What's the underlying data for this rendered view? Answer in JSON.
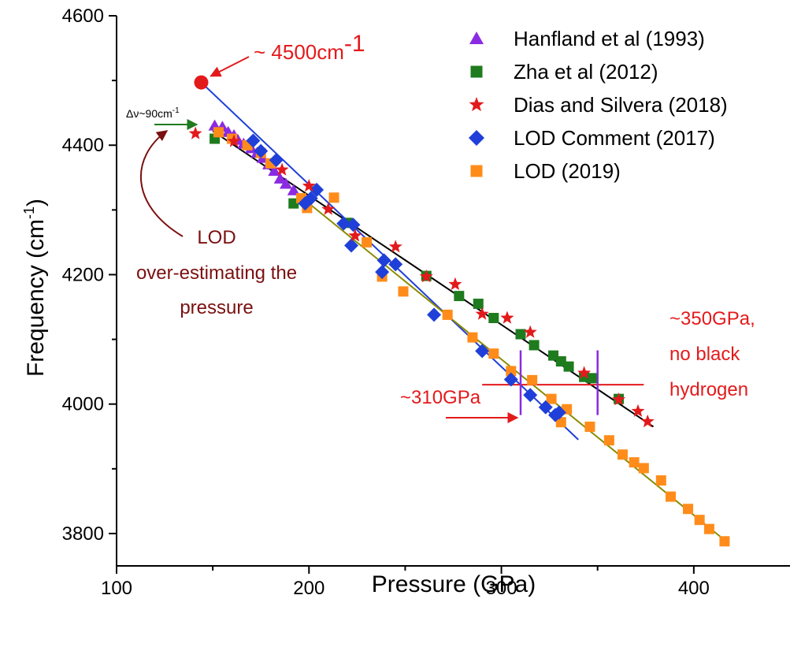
{
  "chart_data": {
    "type": "scatter",
    "xlabel": "Pressure (GPa)",
    "ylabel_main": "Frequency (cm",
    "ylabel_sup": "-1",
    "ylabel_end": ")",
    "xlim": [
      100,
      450
    ],
    "ylim": [
      3750,
      4600
    ],
    "x_ticks": [
      100,
      200,
      300,
      400
    ],
    "y_ticks": [
      3800,
      4000,
      4200,
      4400,
      4600
    ],
    "grid": false,
    "legend_position": "top-right",
    "series": [
      {
        "name": "Hanfland et al (1993)",
        "marker": "triangle",
        "color": "#8a2be2",
        "points": [
          [
            151,
            4430
          ],
          [
            155,
            4428
          ],
          [
            158,
            4420
          ],
          [
            161,
            4415
          ],
          [
            163,
            4408
          ],
          [
            166,
            4402
          ],
          [
            170,
            4395
          ],
          [
            173,
            4388
          ],
          [
            176,
            4380
          ],
          [
            179,
            4370
          ],
          [
            182,
            4360
          ],
          [
            185,
            4348
          ],
          [
            188,
            4340
          ],
          [
            192,
            4330
          ]
        ]
      },
      {
        "name": "Zha et al (2012)",
        "marker": "square",
        "color": "#1e7b1e",
        "points": [
          [
            151,
            4410
          ],
          [
            192,
            4310
          ],
          [
            220,
            4280
          ],
          [
            261,
            4198
          ],
          [
            278,
            4167
          ],
          [
            288,
            4155
          ],
          [
            296,
            4133
          ],
          [
            310,
            4108
          ],
          [
            317,
            4091
          ],
          [
            327,
            4075
          ],
          [
            331,
            4066
          ],
          [
            335,
            4058
          ],
          [
            343,
            4042
          ],
          [
            347,
            4040
          ],
          [
            361,
            4008
          ]
        ]
      },
      {
        "name": "Dias and Silvera (2018)",
        "marker": "star",
        "color": "#e31a1c",
        "points": [
          [
            141,
            4418
          ],
          [
            161,
            4406
          ],
          [
            186,
            4362
          ],
          [
            200,
            4337
          ],
          [
            210,
            4301
          ],
          [
            224,
            4260
          ],
          [
            245,
            4243
          ],
          [
            261,
            4197
          ],
          [
            276,
            4185
          ],
          [
            290,
            4139
          ],
          [
            303,
            4133
          ],
          [
            315,
            4111
          ],
          [
            343,
            4048
          ],
          [
            361,
            4007
          ],
          [
            371,
            3989
          ],
          [
            376,
            3973
          ]
        ]
      },
      {
        "name": "LOD Comment (2017)",
        "marker": "diamond",
        "color": "#1f3fd8",
        "points": [
          [
            171,
            4407
          ],
          [
            175,
            4391
          ],
          [
            183,
            4377
          ],
          [
            198,
            4310
          ],
          [
            201,
            4318
          ],
          [
            204,
            4331
          ],
          [
            218,
            4279
          ],
          [
            223,
            4277
          ],
          [
            222,
            4245
          ],
          [
            238,
            4204
          ],
          [
            239,
            4222
          ],
          [
            245,
            4216
          ],
          [
            265,
            4138
          ],
          [
            290,
            4082
          ],
          [
            305,
            4038
          ],
          [
            315,
            4014
          ],
          [
            323,
            3995
          ],
          [
            328,
            3983
          ],
          [
            330,
            3987
          ]
        ]
      },
      {
        "name": "LOD (2019)",
        "marker": "square",
        "color": "#ff8c1a",
        "points": [
          [
            153,
            4420
          ],
          [
            160,
            4410
          ],
          [
            168,
            4400
          ],
          [
            175,
            4388
          ],
          [
            180,
            4372
          ],
          [
            196,
            4318
          ],
          [
            199,
            4303
          ],
          [
            213,
            4319
          ],
          [
            230,
            4250
          ],
          [
            238,
            4197
          ],
          [
            249,
            4174
          ],
          [
            272,
            4138
          ],
          [
            285,
            4103
          ],
          [
            296,
            4078
          ],
          [
            305,
            4051
          ],
          [
            316,
            4037
          ],
          [
            326,
            4008
          ],
          [
            331,
            3972
          ],
          [
            334,
            3992
          ],
          [
            346,
            3965
          ],
          [
            356,
            3944
          ],
          [
            363,
            3922
          ],
          [
            369,
            3910
          ],
          [
            374,
            3901
          ],
          [
            383,
            3882
          ],
          [
            388,
            3857
          ],
          [
            397,
            3838
          ],
          [
            403,
            3821
          ],
          [
            408,
            3807
          ],
          [
            416,
            3788
          ]
        ]
      }
    ],
    "fit_lines": [
      {
        "color": "#000000",
        "from": [
          150,
          4422
        ],
        "to": [
          379,
          3965
        ]
      },
      {
        "color": "#1f3fd8",
        "from": [
          144,
          4497
        ],
        "to": [
          340,
          3945
        ]
      },
      {
        "color": "#8b8b00",
        "from": [
          200,
          4310
        ],
        "to": [
          418,
          3785
        ]
      }
    ],
    "annotations": {
      "peak_label": "~ 4500cm",
      "peak_label_sup": "-1",
      "peak_point": [
        144,
        4497
      ],
      "delta_label": "Δν~90cm",
      "delta_label_sup": "-1",
      "lod_note": [
        "LOD",
        "over-estimating the",
        "pressure"
      ],
      "note_310": "~310GPa",
      "note_350": [
        "~350GPa,",
        "no black",
        "hydrogen"
      ],
      "marker_310_x": 310,
      "marker_350_x": 350,
      "level_4030": 4030
    },
    "colors": {
      "red": "#e31a1c",
      "brown": "#7a1010",
      "purple": "#8a2be2",
      "green": "#1e7b1e",
      "axis": "#000000"
    }
  }
}
